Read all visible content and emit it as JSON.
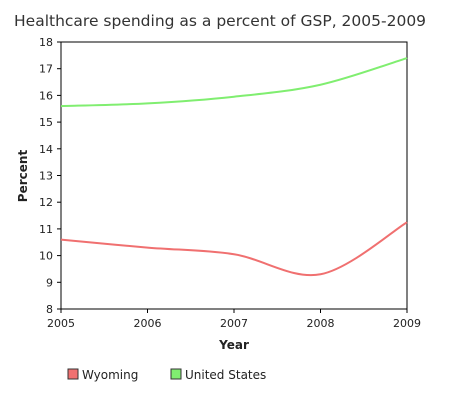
{
  "chart_data": {
    "type": "line",
    "title": "Healthcare spending as a percent of GSP, 2005-2009",
    "xlabel": "Year",
    "ylabel": "Percent",
    "x": [
      2005,
      2006,
      2007,
      2008,
      2009
    ],
    "xlim": [
      2005,
      2009
    ],
    "ylim": [
      8,
      18
    ],
    "yticks": [
      8,
      9,
      10,
      11,
      12,
      13,
      14,
      15,
      16,
      17,
      18
    ],
    "grid": false,
    "legend_position": "bottom-left",
    "series": [
      {
        "name": "Wyoming",
        "color": "#f07070",
        "values": [
          10.6,
          10.3,
          10.05,
          9.3,
          11.25
        ]
      },
      {
        "name": "United States",
        "color": "#80ee70",
        "values": [
          15.6,
          15.7,
          15.95,
          16.4,
          17.4
        ]
      }
    ]
  }
}
